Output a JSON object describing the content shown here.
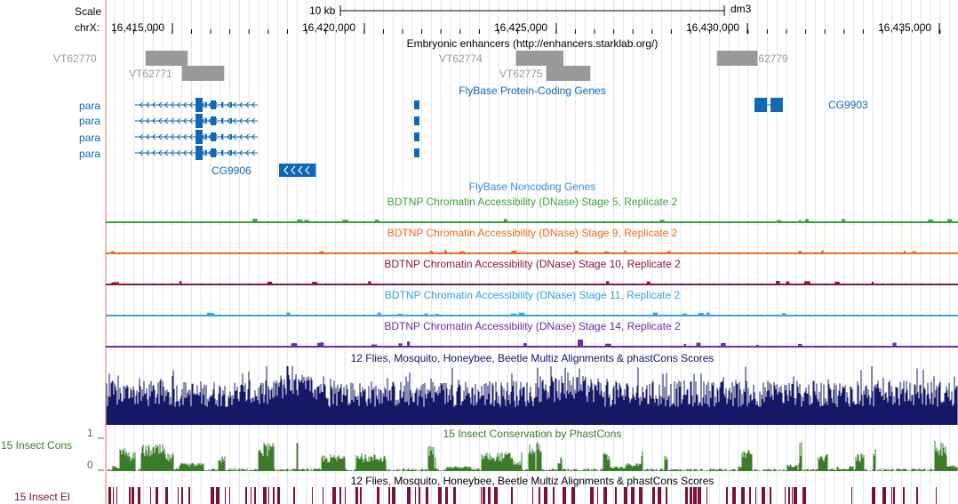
{
  "ruler": {
    "scale_label": "Scale",
    "chrom_label": "chrX:",
    "scalebar_label": "10 kb",
    "assembly": "dm3",
    "positions": [
      "16,415,000",
      "16,420,000",
      "16,425,000",
      "16,430,000",
      "16,435,000"
    ]
  },
  "enhancers": {
    "title": "Embryonic enhancers (http://enhancers.starklab.org/)",
    "color": "#999999",
    "items": [
      {
        "name": "VT62770",
        "start": 16414300,
        "end": 16415400
      },
      {
        "name": "VT62771",
        "start": 16415250,
        "end": 16416350
      },
      {
        "name": "VT62774",
        "start": 16423960,
        "end": 16425200
      },
      {
        "name": "VT62775",
        "start": 16424750,
        "end": 16425900
      },
      {
        "name": "VT62779",
        "start": 16429200,
        "end": 16430260
      }
    ]
  },
  "protein_genes": {
    "title": "FlyBase Protein-Coding Genes",
    "color": "#0e68b6",
    "para_transcripts": [
      {
        "name": "para",
        "start": 16414020,
        "end": 16417220,
        "strand": "-"
      },
      {
        "name": "para",
        "start": 16414020,
        "end": 16417220,
        "strand": "-"
      },
      {
        "name": "para",
        "start": 16414020,
        "end": 16417220,
        "strand": "-"
      },
      {
        "name": "para",
        "start": 16414020,
        "end": 16417220,
        "strand": "-"
      }
    ],
    "other_genes": [
      {
        "name": "CG9906",
        "start": 16417780,
        "end": 16418740,
        "strand": "-"
      },
      {
        "name": "CG9903",
        "start": 16430180,
        "end": 16430920,
        "strand": "+"
      }
    ]
  },
  "noncoding": {
    "title": "FlyBase Noncoding Genes",
    "color": "#3a8fd6"
  },
  "dnase_tracks": [
    {
      "title": "BDTNP Chromatin Accessibility (DNase) Stage 5, Replicate 2",
      "color": "#3aa43a"
    },
    {
      "title": "BDTNP Chromatin Accessibility (DNase) Stage 9, Replicate 2",
      "color": "#ef6c1b"
    },
    {
      "title": "BDTNP Chromatin Accessibility (DNase) Stage 10, Replicate 2",
      "color": "#8b1a2f"
    },
    {
      "title": "BDTNP Chromatin Accessibility (DNase) Stage 11, Replicate 2",
      "color": "#33a7d8"
    },
    {
      "title": "BDTNP Chromatin Accessibility (DNase) Stage 14, Replicate 2",
      "color": "#6b2f9e"
    }
  ],
  "multiz": {
    "title": "12 Flies, Mosquito, Honeybee, Beetle Multiz Alignments & phastCons Scores",
    "color": "#141866"
  },
  "phastcons": {
    "title": "15 Insect Conservation by PhastCons",
    "label": "15 Insect Cons",
    "ymax": "1",
    "ymin": "0",
    "color": "#3a7c2a"
  },
  "elements": {
    "title": "12 Flies, Mosquito, Honeybee, Beetle Multiz Alignments & phastCons Scores",
    "label": "15 Insect El",
    "color": "#7a1232"
  }
}
